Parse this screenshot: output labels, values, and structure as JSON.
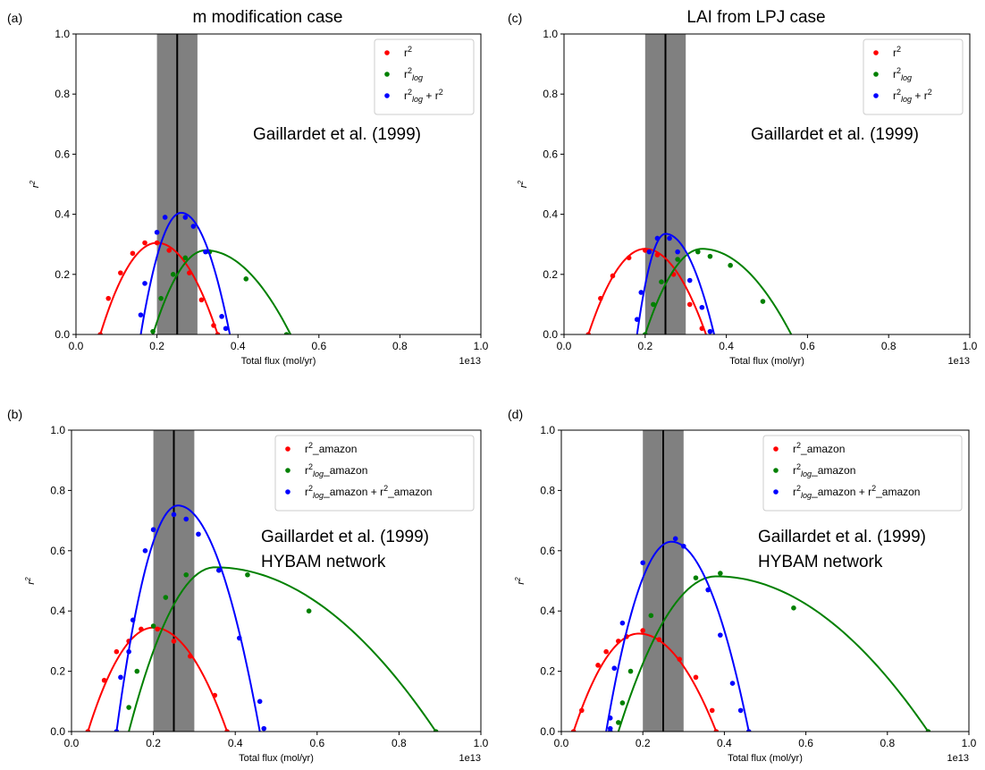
{
  "figure": {
    "axis_xlabel": "Total flux (mol/yr)",
    "axis_ylabel": "r",
    "axis_ylabel_sup": "2",
    "x_offset_label": "1e13",
    "x_ticks": [
      "0.0",
      "0.2",
      "0.4",
      "0.6",
      "0.8",
      "1.0"
    ],
    "y_ticks": [
      "0.0",
      "0.2",
      "0.4",
      "0.6",
      "0.8",
      "1.0"
    ],
    "colors": {
      "r2": "#ff0000",
      "r2log": "#008000",
      "combined": "#0000ff",
      "band": "#808080",
      "line": "#000000"
    }
  },
  "chart_data": [
    {
      "id": "a",
      "type": "scatter",
      "panel_label": "(a)",
      "title": "m modification case",
      "annotation": [
        "Gaillardet et al. (1999)"
      ],
      "legend": {
        "placement": "top-right",
        "entries": [
          {
            "series": "r2",
            "parts": [
              [
                "r",
                ""
              ],
              [
                "2",
                "sup"
              ]
            ]
          },
          {
            "series": "r2log",
            "parts": [
              [
                "r",
                ""
              ],
              [
                "2",
                "sup"
              ],
              [
                "log",
                "subi"
              ]
            ]
          },
          {
            "series": "combined",
            "parts": [
              [
                "r",
                ""
              ],
              [
                "2",
                "sup"
              ],
              [
                "log",
                "subi"
              ],
              [
                " + r",
                ""
              ],
              [
                "2",
                "sup"
              ]
            ]
          }
        ]
      },
      "xlabel": "Total flux (mol/yr)",
      "xlim": [
        0,
        1.0
      ],
      "ylim": [
        0,
        1.0
      ],
      "x_scale": "1e13",
      "band": [
        0.2,
        0.3
      ],
      "vline": 0.25,
      "series": [
        {
          "key": "r2",
          "curve": [
            0.06,
            0.35,
            0.2,
            0.305
          ],
          "points": [
            [
              0.06,
              0.0
            ],
            [
              0.08,
              0.12
            ],
            [
              0.11,
              0.205
            ],
            [
              0.14,
              0.27
            ],
            [
              0.17,
              0.305
            ],
            [
              0.2,
              0.305
            ],
            [
              0.23,
              0.28
            ],
            [
              0.28,
              0.205
            ],
            [
              0.31,
              0.115
            ],
            [
              0.34,
              0.03
            ],
            [
              0.35,
              0.0
            ]
          ]
        },
        {
          "key": "r2log",
          "curve": [
            0.19,
            0.53,
            0.32,
            0.28
          ],
          "points": [
            [
              0.19,
              0.01
            ],
            [
              0.21,
              0.12
            ],
            [
              0.24,
              0.2
            ],
            [
              0.27,
              0.255
            ],
            [
              0.33,
              0.275
            ],
            [
              0.42,
              0.185
            ],
            [
              0.52,
              0.0
            ]
          ]
        },
        {
          "key": "combined",
          "curve": [
            0.16,
            0.38,
            0.26,
            0.405
          ],
          "points": [
            [
              0.16,
              0.065
            ],
            [
              0.17,
              0.17
            ],
            [
              0.2,
              0.34
            ],
            [
              0.22,
              0.39
            ],
            [
              0.27,
              0.39
            ],
            [
              0.29,
              0.36
            ],
            [
              0.32,
              0.275
            ],
            [
              0.36,
              0.06
            ],
            [
              0.37,
              0.02
            ]
          ]
        }
      ]
    },
    {
      "id": "c",
      "type": "scatter",
      "panel_label": "(c)",
      "title": "LAI from LPJ case",
      "annotation": [
        "Gaillardet et al. (1999)"
      ],
      "legend": {
        "placement": "top-right",
        "entries": [
          {
            "series": "r2",
            "parts": [
              [
                "r",
                ""
              ],
              [
                "2",
                "sup"
              ]
            ]
          },
          {
            "series": "r2log",
            "parts": [
              [
                "r",
                ""
              ],
              [
                "2",
                "sup"
              ],
              [
                "log",
                "subi"
              ]
            ]
          },
          {
            "series": "combined",
            "parts": [
              [
                "r",
                ""
              ],
              [
                "2",
                "sup"
              ],
              [
                "log",
                "subi"
              ],
              [
                " + r",
                ""
              ],
              [
                "2",
                "sup"
              ]
            ]
          }
        ]
      },
      "xlabel": "Total flux (mol/yr)",
      "xlim": [
        0,
        1.0
      ],
      "ylim": [
        0,
        1.0
      ],
      "x_scale": "1e13",
      "band": [
        0.2,
        0.3
      ],
      "vline": 0.25,
      "series": [
        {
          "key": "r2",
          "curve": [
            0.06,
            0.35,
            0.2,
            0.285
          ],
          "points": [
            [
              0.06,
              0.0
            ],
            [
              0.09,
              0.12
            ],
            [
              0.12,
              0.195
            ],
            [
              0.16,
              0.255
            ],
            [
              0.2,
              0.28
            ],
            [
              0.23,
              0.265
            ],
            [
              0.27,
              0.2
            ],
            [
              0.31,
              0.1
            ],
            [
              0.34,
              0.02
            ]
          ]
        },
        {
          "key": "r2log",
          "curve": [
            0.2,
            0.56,
            0.34,
            0.285
          ],
          "points": [
            [
              0.2,
              0.0
            ],
            [
              0.22,
              0.1
            ],
            [
              0.24,
              0.175
            ],
            [
              0.28,
              0.25
            ],
            [
              0.33,
              0.275
            ],
            [
              0.36,
              0.26
            ],
            [
              0.41,
              0.23
            ],
            [
              0.49,
              0.11
            ]
          ]
        },
        {
          "key": "combined",
          "curve": [
            0.18,
            0.37,
            0.25,
            0.335
          ],
          "points": [
            [
              0.18,
              0.05
            ],
            [
              0.19,
              0.14
            ],
            [
              0.21,
              0.275
            ],
            [
              0.23,
              0.32
            ],
            [
              0.26,
              0.32
            ],
            [
              0.28,
              0.275
            ],
            [
              0.31,
              0.18
            ],
            [
              0.34,
              0.09
            ],
            [
              0.36,
              0.01
            ]
          ]
        }
      ]
    },
    {
      "id": "b",
      "type": "scatter",
      "panel_label": "(b)",
      "title": "",
      "annotation": [
        "Gaillardet et al. (1999)",
        "HYBAM network"
      ],
      "legend": {
        "placement": "top-right",
        "entries": [
          {
            "series": "r2",
            "parts": [
              [
                "r",
                ""
              ],
              [
                "2",
                "sup"
              ],
              [
                "_amazon",
                ""
              ]
            ]
          },
          {
            "series": "r2log",
            "parts": [
              [
                "r",
                ""
              ],
              [
                "2",
                "sup"
              ],
              [
                "log",
                "subi"
              ],
              [
                "_amazon",
                ""
              ]
            ]
          },
          {
            "series": "combined",
            "parts": [
              [
                "r",
                ""
              ],
              [
                "2",
                "sup"
              ],
              [
                "log",
                "subi"
              ],
              [
                "_amazon + r",
                ""
              ],
              [
                "2",
                "sup"
              ],
              [
                "_amazon",
                ""
              ]
            ]
          }
        ]
      },
      "xlabel": "Total flux (mol/yr)",
      "xlim": [
        0,
        1.0
      ],
      "ylim": [
        0,
        1.0
      ],
      "x_scale": "1e13",
      "band": [
        0.2,
        0.3
      ],
      "vline": 0.25,
      "series": [
        {
          "key": "r2",
          "curve": [
            0.04,
            0.38,
            0.2,
            0.345
          ],
          "points": [
            [
              0.04,
              0.0
            ],
            [
              0.08,
              0.17
            ],
            [
              0.11,
              0.265
            ],
            [
              0.14,
              0.3
            ],
            [
              0.17,
              0.34
            ],
            [
              0.21,
              0.34
            ],
            [
              0.25,
              0.3
            ],
            [
              0.29,
              0.25
            ],
            [
              0.35,
              0.12
            ],
            [
              0.38,
              0.0
            ]
          ]
        },
        {
          "key": "r2log",
          "curve": [
            0.14,
            0.89,
            0.35,
            0.545
          ],
          "points": [
            [
              0.14,
              0.08
            ],
            [
              0.16,
              0.2
            ],
            [
              0.2,
              0.35
            ],
            [
              0.23,
              0.445
            ],
            [
              0.28,
              0.52
            ],
            [
              0.36,
              0.535
            ],
            [
              0.43,
              0.52
            ],
            [
              0.58,
              0.4
            ],
            [
              0.89,
              0.0
            ]
          ]
        },
        {
          "key": "combined",
          "curve": [
            0.11,
            0.46,
            0.26,
            0.75
          ],
          "points": [
            [
              0.11,
              0.0
            ],
            [
              0.12,
              0.18
            ],
            [
              0.14,
              0.265
            ],
            [
              0.15,
              0.37
            ],
            [
              0.18,
              0.6
            ],
            [
              0.2,
              0.67
            ],
            [
              0.25,
              0.72
            ],
            [
              0.28,
              0.705
            ],
            [
              0.31,
              0.655
            ],
            [
              0.36,
              0.535
            ],
            [
              0.41,
              0.31
            ],
            [
              0.46,
              0.1
            ],
            [
              0.47,
              0.01
            ]
          ]
        }
      ]
    },
    {
      "id": "d",
      "type": "scatter",
      "panel_label": "(d)",
      "title": "",
      "annotation": [
        "Gaillardet et al. (1999)",
        "HYBAM network"
      ],
      "legend": {
        "placement": "top-right",
        "entries": [
          {
            "series": "r2",
            "parts": [
              [
                "r",
                ""
              ],
              [
                "2",
                "sup"
              ],
              [
                "_amazon",
                ""
              ]
            ]
          },
          {
            "series": "r2log",
            "parts": [
              [
                "r",
                ""
              ],
              [
                "2",
                "sup"
              ],
              [
                "log",
                "subi"
              ],
              [
                "_amazon",
                ""
              ]
            ]
          },
          {
            "series": "combined",
            "parts": [
              [
                "r",
                ""
              ],
              [
                "2",
                "sup"
              ],
              [
                "log",
                "subi"
              ],
              [
                "_amazon + r",
                ""
              ],
              [
                "2",
                "sup"
              ],
              [
                "_amazon",
                ""
              ]
            ]
          }
        ]
      },
      "xlabel": "Total flux (mol/yr)",
      "xlim": [
        0,
        1.0
      ],
      "ylim": [
        0,
        1.0
      ],
      "x_scale": "1e13",
      "band": [
        0.2,
        0.3
      ],
      "vline": 0.25,
      "series": [
        {
          "key": "r2",
          "curve": [
            0.03,
            0.38,
            0.19,
            0.325
          ],
          "points": [
            [
              0.03,
              0.0
            ],
            [
              0.05,
              0.07
            ],
            [
              0.09,
              0.22
            ],
            [
              0.11,
              0.265
            ],
            [
              0.14,
              0.3
            ],
            [
              0.16,
              0.315
            ],
            [
              0.2,
              0.335
            ],
            [
              0.24,
              0.305
            ],
            [
              0.29,
              0.24
            ],
            [
              0.33,
              0.18
            ],
            [
              0.37,
              0.07
            ],
            [
              0.38,
              0.0
            ]
          ]
        },
        {
          "key": "r2log",
          "curve": [
            0.14,
            0.9,
            0.38,
            0.515
          ],
          "points": [
            [
              0.14,
              0.03
            ],
            [
              0.15,
              0.095
            ],
            [
              0.17,
              0.2
            ],
            [
              0.22,
              0.385
            ],
            [
              0.33,
              0.51
            ],
            [
              0.39,
              0.525
            ],
            [
              0.57,
              0.41
            ],
            [
              0.9,
              0.0
            ]
          ]
        },
        {
          "key": "combined",
          "curve": [
            0.11,
            0.46,
            0.27,
            0.63
          ],
          "points": [
            [
              0.12,
              0.0
            ],
            [
              0.12,
              0.045
            ],
            [
              0.12,
              0.01
            ],
            [
              0.13,
              0.21
            ],
            [
              0.15,
              0.36
            ],
            [
              0.2,
              0.56
            ],
            [
              0.28,
              0.64
            ],
            [
              0.3,
              0.615
            ],
            [
              0.36,
              0.47
            ],
            [
              0.39,
              0.32
            ],
            [
              0.42,
              0.16
            ],
            [
              0.44,
              0.07
            ],
            [
              0.46,
              0.0
            ]
          ]
        }
      ]
    }
  ]
}
